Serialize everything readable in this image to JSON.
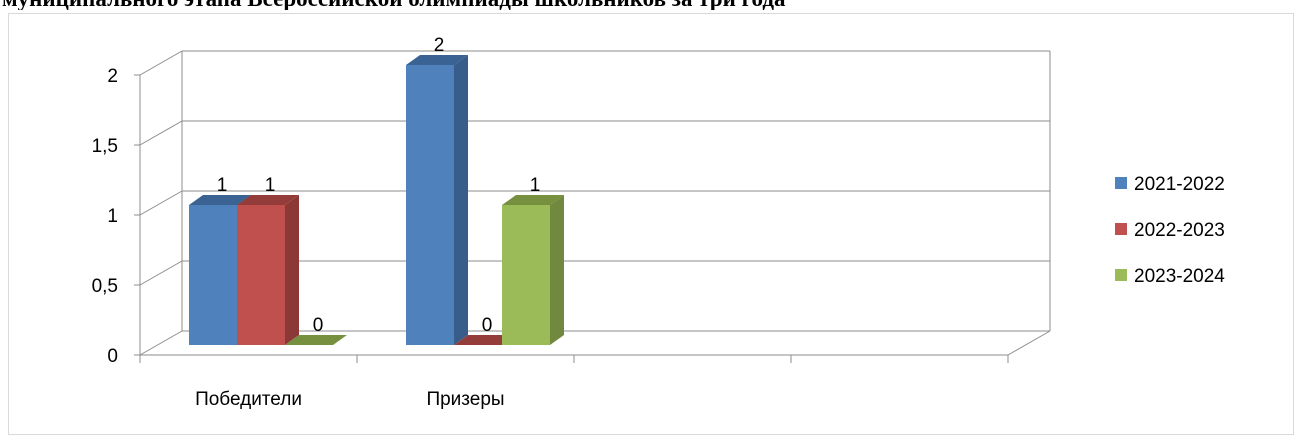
{
  "page": {
    "title": "муниципального этапа Всероссийской олимпиады школьников за три года"
  },
  "chart_data": {
    "type": "bar",
    "title": "",
    "xlabel": "",
    "ylabel": "",
    "categories": [
      "Победители",
      "Призеры",
      "",
      ""
    ],
    "series": [
      {
        "name": "2021-2022",
        "values": [
          1,
          2,
          null,
          null
        ],
        "color": "#4f81bd",
        "side": "#385d8a",
        "top": "#3a6394"
      },
      {
        "name": "2022-2023",
        "values": [
          1,
          0,
          null,
          null
        ],
        "color": "#c0504d",
        "side": "#8c3836",
        "top": "#943c3a"
      },
      {
        "name": "2023-2024",
        "values": [
          0,
          1,
          null,
          null
        ],
        "color": "#9bbb59",
        "side": "#71893f",
        "top": "#77903f"
      }
    ],
    "ylim": [
      0,
      2
    ],
    "yticks": [
      0,
      0.5,
      1,
      1.5,
      2
    ],
    "ytick_labels": [
      "0",
      "0,5",
      "1",
      "1,5",
      "2"
    ],
    "data_labels": [
      [
        "1",
        "2"
      ],
      [
        "1",
        "0"
      ],
      [
        "0",
        "1"
      ]
    ],
    "grid": true,
    "legend": "right",
    "three_d": true
  }
}
